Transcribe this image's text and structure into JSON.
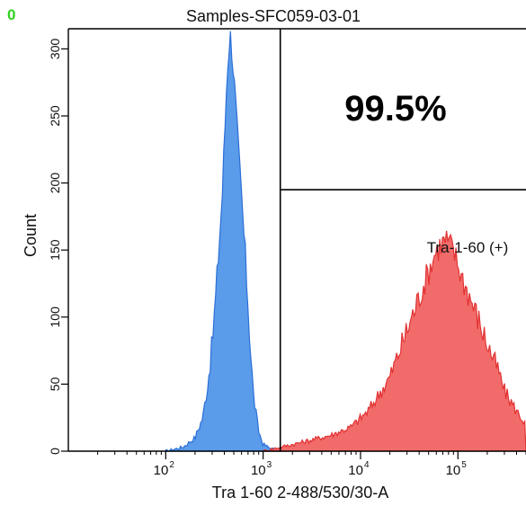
{
  "corner_mark": "0",
  "chart_data": {
    "type": "area",
    "title": "Samples-SFC059-03-01",
    "xlabel": "Tra 1-60 2-488/530/30-A",
    "ylabel": "Count",
    "x_scale": "log",
    "xlim": [
      10,
      500000
    ],
    "ylim": [
      0,
      315
    ],
    "x_ticks": [
      {
        "value": 100,
        "label": "10",
        "exp": "2"
      },
      {
        "value": 1000,
        "label": "10",
        "exp": "3"
      },
      {
        "value": 10000,
        "label": "10",
        "exp": "4"
      },
      {
        "value": 100000,
        "label": "10",
        "exp": "5"
      }
    ],
    "y_ticks": [
      0,
      50,
      100,
      150,
      200,
      250,
      300
    ],
    "grid": false,
    "gate": {
      "name": "Tra-1-60 (+)",
      "x_start": 1500,
      "y_level": 195,
      "percent": "99.5%"
    },
    "series": [
      {
        "color": "#5a9bea",
        "edge_color": "#2c6fd6",
        "x": [
          100,
          150,
          200,
          240,
          270,
          300,
          330,
          350,
          380,
          400,
          420,
          440,
          460,
          480,
          500,
          520,
          550,
          600,
          650,
          700,
          750,
          800,
          900,
          1000,
          1200,
          1500
        ],
        "y": [
          0,
          3,
          10,
          25,
          50,
          80,
          120,
          150,
          190,
          230,
          270,
          300,
          310,
          300,
          280,
          260,
          230,
          190,
          150,
          110,
          70,
          40,
          15,
          5,
          2,
          0
        ]
      },
      {
        "color": "#f26b6b",
        "edge_color": "#e23232",
        "x": [
          1000,
          1500,
          2000,
          3000,
          5000,
          8000,
          12000,
          20000,
          30000,
          45000,
          60000,
          75000,
          90000,
          110000,
          150000,
          200000,
          260000,
          300000,
          400000,
          500000
        ],
        "y": [
          0,
          3,
          5,
          8,
          12,
          18,
          30,
          55,
          90,
          125,
          150,
          158,
          150,
          130,
          105,
          80,
          60,
          45,
          30,
          20
        ]
      }
    ]
  }
}
